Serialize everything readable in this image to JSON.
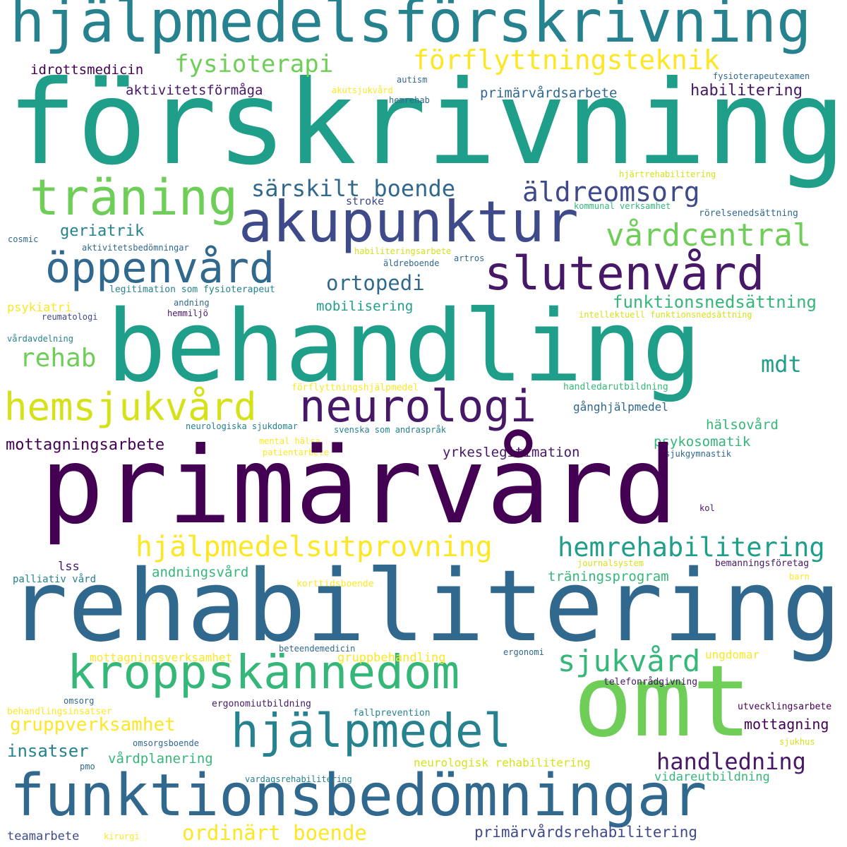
{
  "palette": {
    "c1": "#440154",
    "c2": "#471868",
    "c3": "#3e4a89",
    "c4": "#31688e",
    "c5": "#26828e",
    "c6": "#1f9e89",
    "c7": "#35b779",
    "c8": "#6ece58",
    "c9": "#b5de2b",
    "c10": "#fde725",
    "c11": "#d5e21a"
  },
  "words": {
    "w001": "hjälpmedelsförskrivning",
    "w002": "förskrivning",
    "w003": "fysioterapi",
    "w004": "förflyttningsteknik",
    "w005": "idrottsmedicin",
    "w006": "autism",
    "w007": "fysioterapeutexamen",
    "w008": "aktivitetsförmåga",
    "w009": "akutsjukvård",
    "w010": "primärvårdsarbete",
    "w011": "habilitering",
    "w012": "hemrehab",
    "w013": "hjärtrehabilitering",
    "w014": "träning",
    "w015": "särskilt boende",
    "w016": "äldreomsorg",
    "w017": "akupunktur",
    "w018": "stroke",
    "w019": "kommunal verksamhet",
    "w020": "rörelsenedsättning",
    "w021": "geriatrik",
    "w022": "vårdcentral",
    "w023": "cosmic",
    "w024": "aktivitetsbedömningar",
    "w025": "habiliteringsarbete",
    "w026": "artros",
    "w027": "öppenvård",
    "w028": "slutenvård",
    "w029": "äldreboende",
    "w030": "ortopedi",
    "w031": "legitimation som fysioterapeut",
    "w032": "funktionsnedsättning",
    "w033": "psykiatri",
    "w034": "andning",
    "w035": "mobilisering",
    "w036": "reumatologi",
    "w037": "hemmiljö",
    "w038": "intellektuell funktionsnedsättning",
    "w039": "behandling",
    "w040": "vårdavdelning",
    "w041": "rehab",
    "w042": "mdt",
    "w043": "förflyttningshjälpmedel",
    "w044": "handledarutbildning",
    "w045": "hemsjukvård",
    "w046": "neurologi",
    "w047": "gånghjälpmedel",
    "w048": "neurologiska sjukdomar",
    "w049": "svenska som andraspråk",
    "w050": "hälsovård",
    "w051": "mottagningsarbete",
    "w052": "mental hälsa",
    "w053": "psykosomatik",
    "w054": "patientarbete",
    "w055": "yrkeslegitimation",
    "w056": "sjukgymnastik",
    "w057": "primärvård",
    "w058": "kol",
    "w059": "hjälpmedelsutprovning",
    "w060": "hemrehabilitering",
    "w061": "lss",
    "w062": "journalsystem",
    "w063": "bemanningsföretag",
    "w064": "andningsvård",
    "w065": "palliativ vård",
    "w066": "träningsprogram",
    "w067": "barn",
    "w068": "korttidsboende",
    "w069": "rehabilitering",
    "w070": "beteendemedicin",
    "w071": "ergonomi",
    "w072": "kroppskännedom",
    "w073": "sjukvård",
    "w074": "mottagningsverksamhet",
    "w075": "gruppbehandling",
    "w076": "ungdomar",
    "w077": "omt",
    "w078": "telefonrådgivning",
    "w079": "omsorg",
    "w080": "ergonomiutbildning",
    "w081": "behandlingsinsatser",
    "w082": "fallprevention",
    "w083": "utvecklingsarbete",
    "w084": "gruppverksamhet",
    "w085": "hjälpmedel",
    "w086": "mottagning",
    "w087": "insatser",
    "w088": "omsorgsboende",
    "w089": "sjukhus",
    "w090": "handledning",
    "w091": "vårdplanering",
    "w092": "pmo",
    "w093": "neurologisk rehabilitering",
    "w094": "funktionsbedömningar",
    "w095": "vardagsrehabilitering",
    "w096": "vidareutbildning",
    "w097": "ordinärt boende",
    "w098": "primärvårdsrehabilitering",
    "w099": "teamarbete",
    "w100": "kirurgi"
  }
}
